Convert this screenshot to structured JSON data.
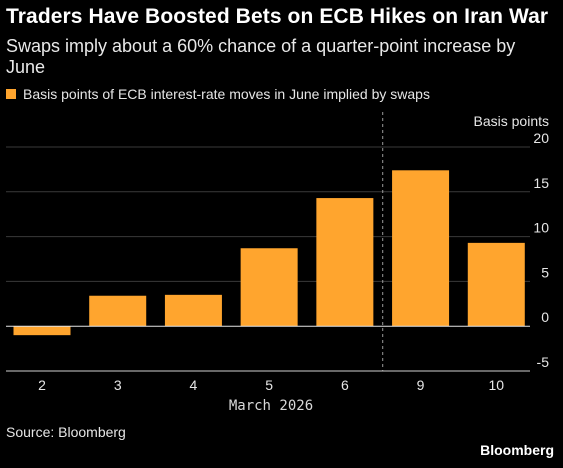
{
  "title": "Traders Have Boosted Bets on ECB Hikes on Iran War",
  "subtitle": "Swaps imply about a 60% chance of a quarter-point increase by June",
  "legend": {
    "label": "Basis points of ECB interest-rate moves in June implied by swaps"
  },
  "source": "Source: Bloomberg",
  "brand": "Bloomberg",
  "colors": {
    "bar": "#ffa52e",
    "background": "#000000",
    "grid": "#3a3a3a",
    "axis": "#cfcfcf"
  },
  "chart_data": {
    "type": "bar",
    "categories": [
      "2",
      "3",
      "4",
      "5",
      "6",
      "9",
      "10"
    ],
    "values": [
      -1,
      3.4,
      3.5,
      8.7,
      14.3,
      17.4,
      9.3
    ],
    "xlabel": "March 2026",
    "ylabel": "Basis points",
    "ylim": [
      -5,
      20
    ],
    "yticks": [
      -5,
      0,
      5,
      10,
      15,
      20
    ],
    "grid": true,
    "y_axis_side": "right",
    "divider_between": [
      "6",
      "9"
    ]
  }
}
